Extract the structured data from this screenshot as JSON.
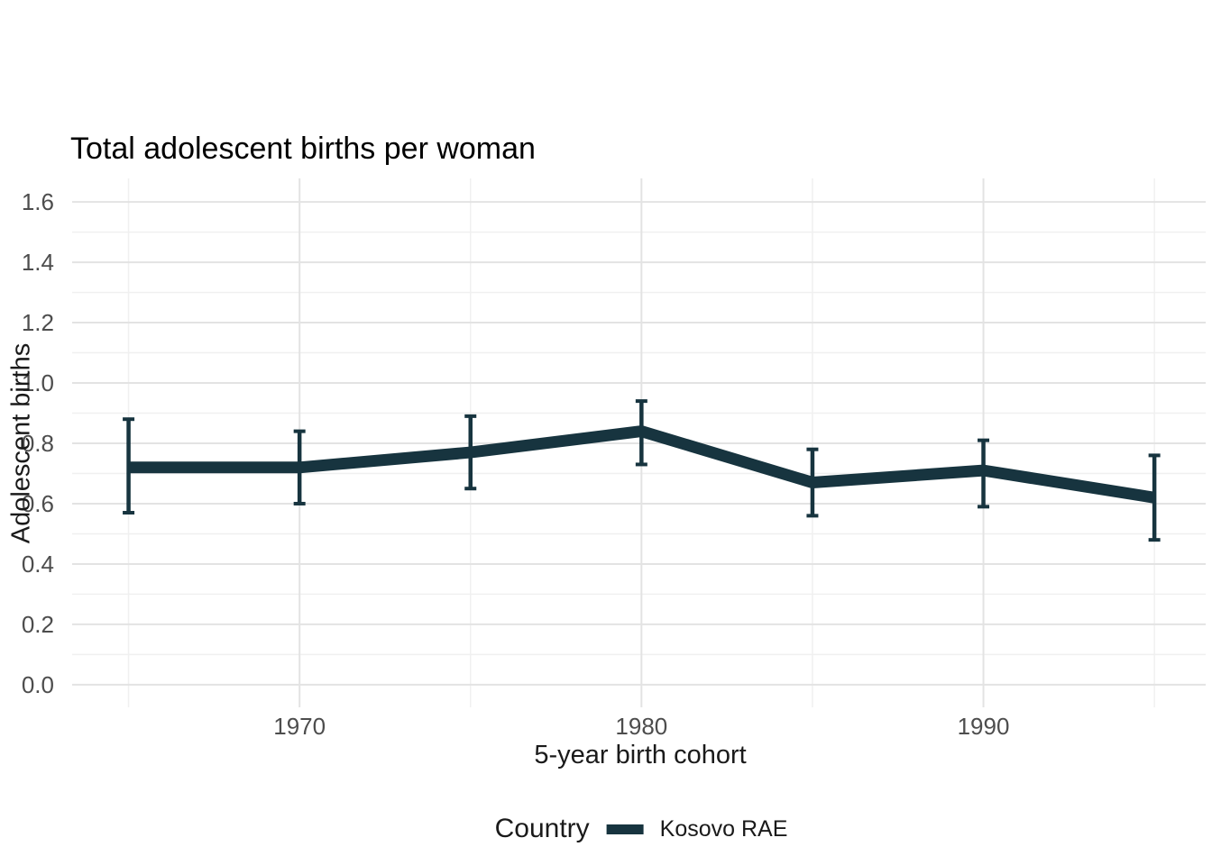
{
  "chart_data": {
    "type": "line",
    "title": "Total adolescent births per woman",
    "xlabel": "5-year birth cohort",
    "ylabel": "Adolescent births",
    "legend_title": "Country",
    "legend_position": "bottom",
    "grid": true,
    "x": [
      1965,
      1970,
      1975,
      1980,
      1985,
      1990,
      1995
    ],
    "series": [
      {
        "name": "Kosovo RAE",
        "color": "#17343f",
        "values": [
          0.72,
          0.72,
          0.77,
          0.84,
          0.67,
          0.71,
          0.62
        ],
        "lower": [
          0.57,
          0.6,
          0.65,
          0.73,
          0.56,
          0.59,
          0.48
        ],
        "upper": [
          0.88,
          0.84,
          0.89,
          0.94,
          0.78,
          0.81,
          0.76
        ]
      }
    ],
    "x_ticks": {
      "major": [
        1970,
        1980,
        1990
      ],
      "labels": [
        "1970",
        "1980",
        "1990"
      ],
      "minor": [
        1965,
        1975,
        1985,
        1995
      ]
    },
    "y_ticks": {
      "major": [
        0.0,
        0.2,
        0.4,
        0.6,
        0.8,
        1.0,
        1.2,
        1.4,
        1.6
      ],
      "labels": [
        "0.0",
        "0.2",
        "0.4",
        "0.6",
        "0.8",
        "1.0",
        "1.2",
        "1.4",
        "1.6"
      ],
      "minor": [
        0.1,
        0.3,
        0.5,
        0.7,
        0.9,
        1.1,
        1.3,
        1.5
      ]
    },
    "xlim": [
      1963.35,
      1996.5
    ],
    "ylim": [
      -0.075,
      1.678
    ],
    "colors": {
      "tick_label": "#4d4d4d",
      "grid_major": "#e3e3e3",
      "grid_minor": "#f0f0f0"
    }
  }
}
